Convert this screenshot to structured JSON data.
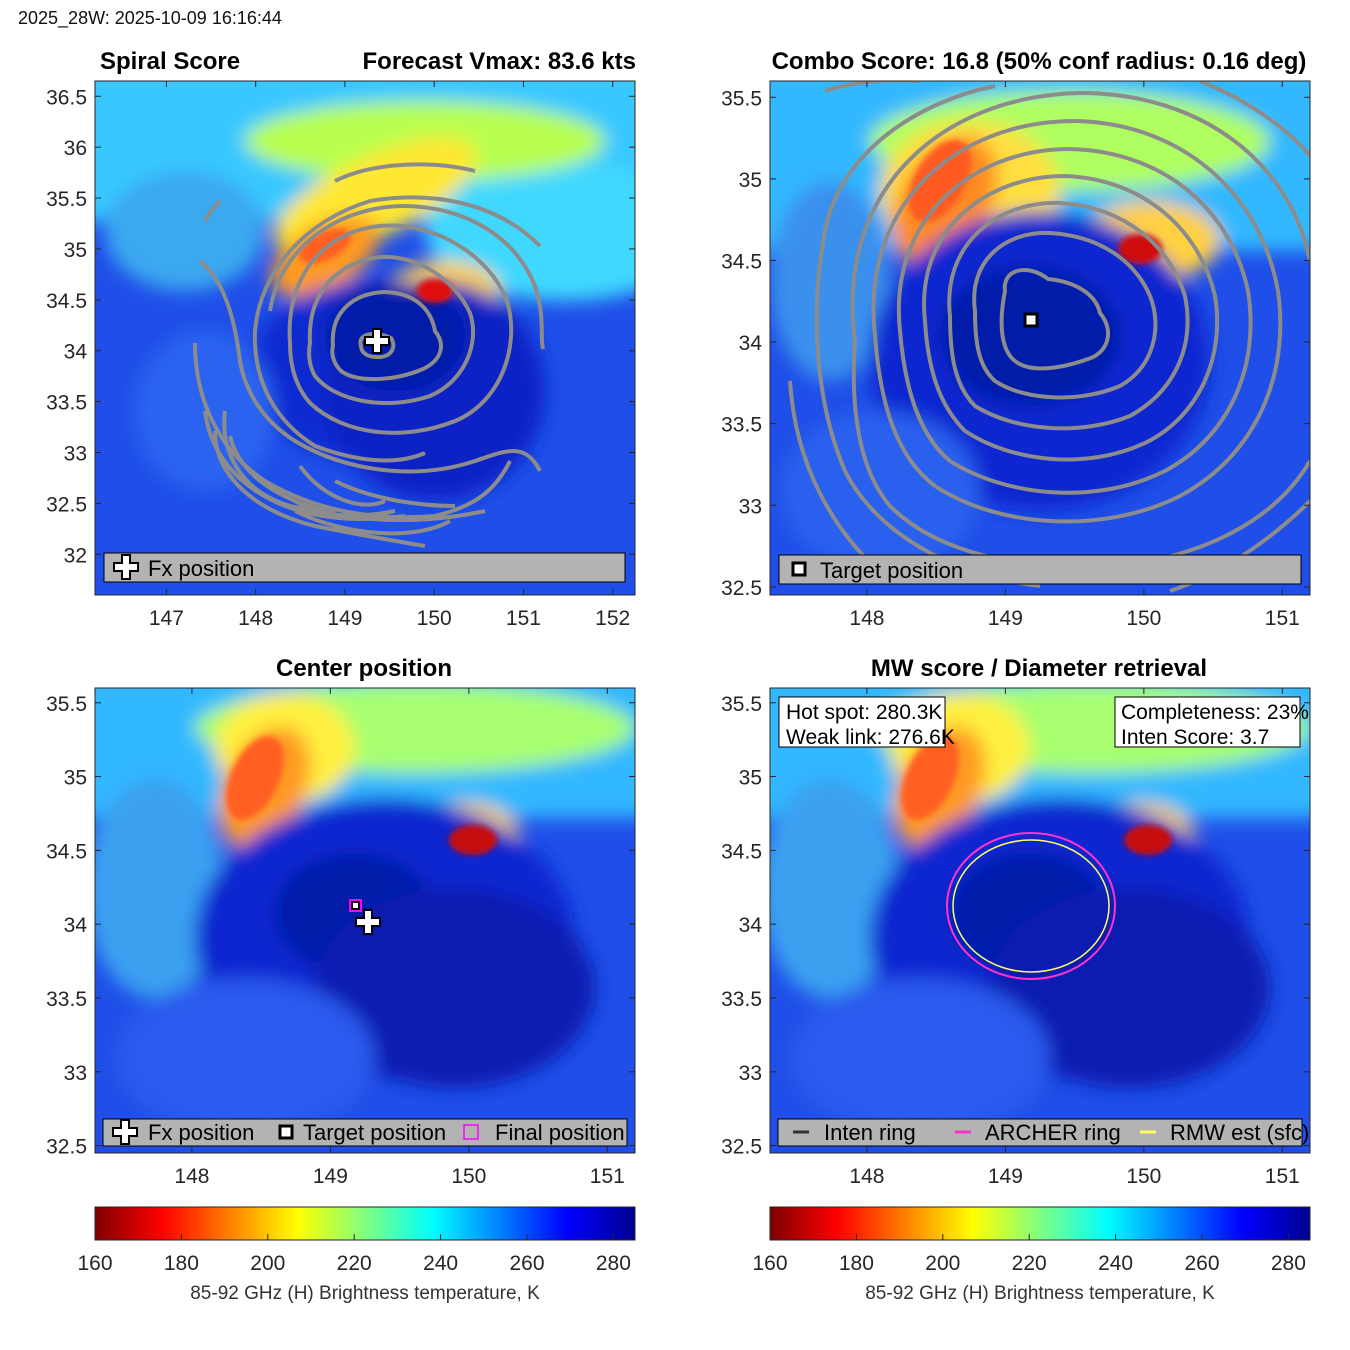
{
  "header": "2025_28W: 2025-10-09 16:16:44",
  "colors": {
    "contour": "#8c8c8c",
    "archer_ring": "#ff33cc",
    "rmw_ring": "#ffff66",
    "inten_ring": "#333333",
    "legend_bg": "#b3b3b3",
    "colormap": [
      "#7f0000",
      "#ff0000",
      "#ff8000",
      "#ffff00",
      "#80ff80",
      "#00ffff",
      "#0080ff",
      "#0000ff",
      "#00008f"
    ]
  },
  "chart_data": [
    {
      "panel": "spiral",
      "type": "heatmap",
      "title_left": "Spiral Score",
      "title_right": "Forecast Vmax: 83.6 kts",
      "xlim": [
        146.2,
        152.25
      ],
      "ylim": [
        31.6,
        36.65
      ],
      "xticks": [
        147,
        148,
        149,
        150,
        151,
        152
      ],
      "yticks": [
        32,
        32.5,
        33,
        33.5,
        34,
        34.5,
        35,
        35.5,
        36,
        36.5
      ],
      "fx_position": {
        "lon": 149.3,
        "lat": 34.05
      },
      "contours": true,
      "legend": [
        {
          "icon": "plus-icon",
          "label": "Fx position"
        }
      ]
    },
    {
      "panel": "combo",
      "type": "heatmap",
      "title": "Combo Score: 16.8  (50% conf radius: 0.16 deg)",
      "xlim": [
        147.3,
        151.2
      ],
      "ylim": [
        32.45,
        35.6
      ],
      "xticks": [
        148,
        149,
        150,
        151
      ],
      "yticks": [
        32.5,
        33,
        33.5,
        34,
        34.5,
        35,
        35.5
      ],
      "target_position": {
        "lon": 149.2,
        "lat": 34.15
      },
      "contours": true,
      "legend": [
        {
          "icon": "square-marker-icon",
          "label": "Target position"
        }
      ]
    },
    {
      "panel": "center",
      "type": "heatmap",
      "title": "Center position",
      "xlim": [
        147.3,
        151.2
      ],
      "ylim": [
        32.45,
        35.6
      ],
      "xticks": [
        148,
        149,
        150,
        151
      ],
      "yticks": [
        32.5,
        33,
        33.5,
        34,
        34.5,
        35,
        35.5
      ],
      "fx_position": {
        "lon": 149.27,
        "lat": 34.05
      },
      "target_position": {
        "lon": 149.2,
        "lat": 34.15
      },
      "final_position": {
        "lon": 149.2,
        "lat": 34.15
      },
      "legend": [
        {
          "icon": "plus-icon",
          "label": "Fx position"
        },
        {
          "icon": "square-marker-icon",
          "label": "Target position"
        },
        {
          "icon": "magenta-square-icon",
          "label": "Final position"
        }
      ]
    },
    {
      "panel": "mw",
      "type": "heatmap",
      "title": "MW score / Diameter retrieval",
      "xlim": [
        147.3,
        151.2
      ],
      "ylim": [
        32.45,
        35.6
      ],
      "xticks": [
        148,
        149,
        150,
        151
      ],
      "yticks": [
        32.5,
        33,
        33.5,
        34,
        34.5,
        35,
        35.5
      ],
      "hot_spot": "Hot spot: 280.3K",
      "weak_link": "Weak link: 276.6K",
      "completeness": "Completeness: 23%",
      "inten_score": "Inten Score: 3.7",
      "ring_center": {
        "lon": 149.2,
        "lat": 34.15
      },
      "archer_ring_radius_deg": 0.59,
      "rmw_ring_radius_deg": 0.55,
      "legend": [
        {
          "icon": "dark-line-icon",
          "label": "Inten ring"
        },
        {
          "icon": "magenta-line-icon",
          "label": "ARCHER ring"
        },
        {
          "icon": "yellow-line-icon",
          "label": "RMW est (sfc)"
        }
      ]
    }
  ],
  "colorbar": {
    "ticks": [
      160,
      180,
      200,
      220,
      240,
      260,
      280
    ],
    "range": [
      160,
      285
    ],
    "label": "85-92 GHz (H) Brightness temperature, K"
  }
}
